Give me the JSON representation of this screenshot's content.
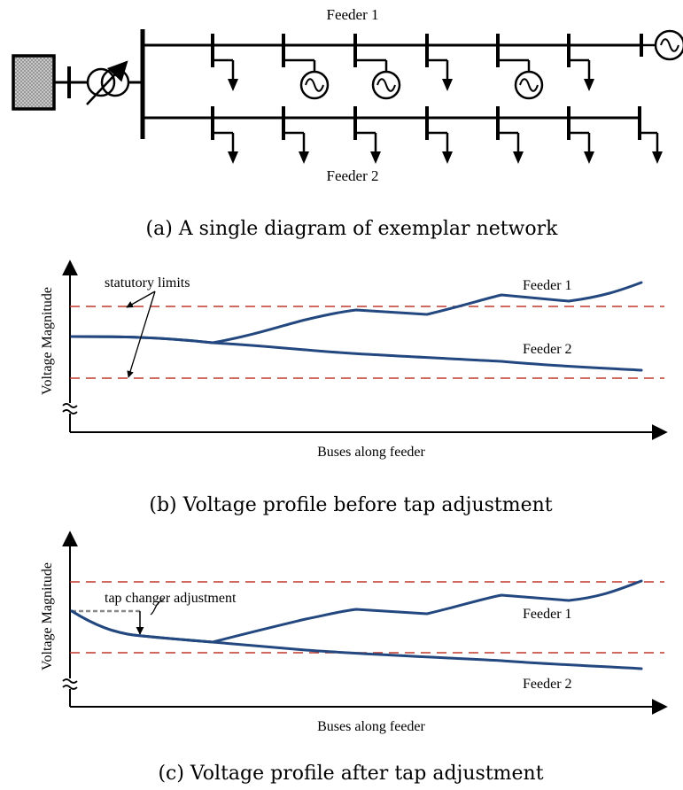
{
  "network": {
    "feeder1_label": "Feeder 1",
    "feeder2_label": "Feeder 2",
    "caption": "(a) A single diagram of exemplar network",
    "feeder1_taps": [
      "load",
      "generator",
      "generator",
      "load",
      "generator",
      "load",
      "generator"
    ],
    "feeder2_taps": [
      "load",
      "load",
      "load",
      "load",
      "load",
      "load",
      "load"
    ]
  },
  "profile_before": {
    "ylabel": "Voltage Magnitude",
    "xlabel": "Buses along feeder",
    "caption": "(b) Voltage profile before tap adjustment",
    "annotation": "statutory limits",
    "feeder1_label": "Feeder 1",
    "feeder2_label": "Feeder 2"
  },
  "profile_after": {
    "ylabel": "Voltage Magnitude",
    "xlabel": "Buses along feeder",
    "caption": "(c) Voltage profile after tap adjustment",
    "annotation": "tap changer adjustment",
    "feeder1_label": "Feeder 1",
    "feeder2_label": "Feeder 2"
  },
  "colors": {
    "curve": "#23477f",
    "limit": "#c0392b",
    "tap_shift": "#888888",
    "source_fill": "#bbbbbb"
  }
}
